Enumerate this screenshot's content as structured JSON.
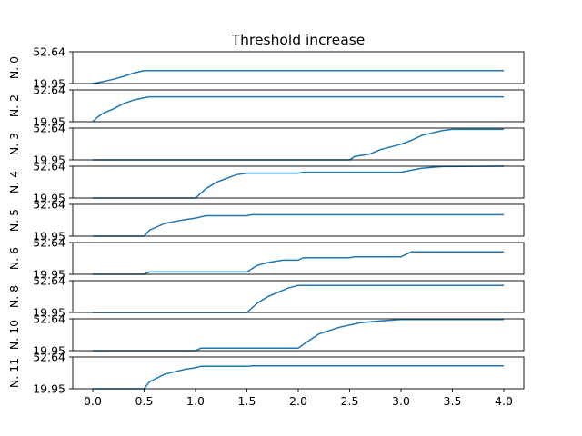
{
  "chart_data": {
    "type": "line",
    "title": "Threshold increase",
    "xlim": [
      0.0,
      4.0
    ],
    "ylim": [
      19.95,
      52.64
    ],
    "x_ticks": [
      "0.0",
      "0.5",
      "1.0",
      "1.5",
      "2.0",
      "2.5",
      "3.0",
      "3.5",
      "4.0"
    ],
    "y_tick_labels": [
      "19.95",
      "52.64"
    ],
    "line_color": "#1f77b4",
    "subplots": [
      {
        "ylabel": "N. 0",
        "points": [
          [
            0.0,
            19.95
          ],
          [
            0.1,
            21.9
          ],
          [
            0.2,
            24.3
          ],
          [
            0.3,
            27.3
          ],
          [
            0.4,
            30.8
          ],
          [
            0.5,
            33.2
          ],
          [
            4.0,
            33.2
          ]
        ]
      },
      {
        "ylabel": "N. 2",
        "points": [
          [
            0.0,
            19.95
          ],
          [
            0.05,
            25.0
          ],
          [
            0.1,
            28.5
          ],
          [
            0.2,
            33.0
          ],
          [
            0.3,
            38.5
          ],
          [
            0.4,
            42.3
          ],
          [
            0.5,
            44.6
          ],
          [
            0.55,
            45.5
          ],
          [
            4.0,
            45.5
          ]
        ]
      },
      {
        "ylabel": "N. 3",
        "points": [
          [
            0.0,
            19.95
          ],
          [
            2.5,
            19.95
          ],
          [
            2.55,
            23.5
          ],
          [
            2.7,
            26.0
          ],
          [
            2.8,
            30.5
          ],
          [
            3.0,
            36.0
          ],
          [
            3.1,
            40.0
          ],
          [
            3.2,
            45.0
          ],
          [
            3.4,
            50.0
          ],
          [
            3.5,
            51.3
          ],
          [
            4.0,
            51.3
          ]
        ]
      },
      {
        "ylabel": "N. 4",
        "points": [
          [
            0.0,
            19.95
          ],
          [
            1.0,
            19.95
          ],
          [
            1.1,
            29.5
          ],
          [
            1.2,
            36.0
          ],
          [
            1.3,
            40.0
          ],
          [
            1.4,
            44.0
          ],
          [
            1.5,
            45.5
          ],
          [
            2.0,
            45.5
          ],
          [
            2.05,
            46.5
          ],
          [
            3.0,
            46.5
          ],
          [
            3.2,
            50.5
          ],
          [
            3.4,
            52.3
          ],
          [
            4.0,
            52.64
          ]
        ]
      },
      {
        "ylabel": "N. 5",
        "points": [
          [
            0.0,
            19.95
          ],
          [
            0.5,
            19.95
          ],
          [
            0.55,
            26.0
          ],
          [
            0.7,
            33.0
          ],
          [
            0.9,
            37.0
          ],
          [
            1.0,
            38.5
          ],
          [
            1.1,
            41.0
          ],
          [
            1.5,
            41.0
          ],
          [
            1.55,
            42.0
          ],
          [
            4.0,
            42.0
          ]
        ]
      },
      {
        "ylabel": "N. 6",
        "points": [
          [
            0.0,
            19.95
          ],
          [
            0.5,
            19.95
          ],
          [
            0.55,
            22.4
          ],
          [
            1.5,
            22.4
          ],
          [
            1.6,
            29.0
          ],
          [
            1.7,
            32.0
          ],
          [
            1.85,
            34.5
          ],
          [
            2.0,
            34.5
          ],
          [
            2.05,
            37.0
          ],
          [
            2.5,
            37.0
          ],
          [
            2.55,
            38.0
          ],
          [
            3.0,
            38.0
          ],
          [
            3.1,
            43.0
          ],
          [
            4.0,
            43.0
          ]
        ]
      },
      {
        "ylabel": "N. 8",
        "points": [
          [
            0.0,
            19.95
          ],
          [
            1.5,
            19.95
          ],
          [
            1.6,
            29.5
          ],
          [
            1.7,
            36.0
          ],
          [
            1.8,
            40.5
          ],
          [
            1.9,
            45.0
          ],
          [
            2.0,
            47.8
          ],
          [
            4.0,
            47.8
          ]
        ]
      },
      {
        "ylabel": "N. 10",
        "points": [
          [
            0.0,
            19.95
          ],
          [
            1.0,
            19.95
          ],
          [
            1.05,
            22.5
          ],
          [
            2.0,
            22.5
          ],
          [
            2.1,
            30.0
          ],
          [
            2.2,
            37.0
          ],
          [
            2.4,
            44.0
          ],
          [
            2.6,
            48.5
          ],
          [
            2.8,
            50.5
          ],
          [
            3.0,
            52.0
          ],
          [
            4.0,
            52.0
          ]
        ]
      },
      {
        "ylabel": "N. 11",
        "points": [
          [
            0.0,
            19.95
          ],
          [
            0.5,
            19.95
          ],
          [
            0.55,
            27.0
          ],
          [
            0.7,
            35.0
          ],
          [
            0.9,
            40.0
          ],
          [
            1.0,
            41.5
          ],
          [
            1.05,
            43.0
          ],
          [
            1.5,
            43.0
          ],
          [
            1.55,
            43.5
          ],
          [
            4.0,
            43.5
          ]
        ]
      }
    ]
  }
}
